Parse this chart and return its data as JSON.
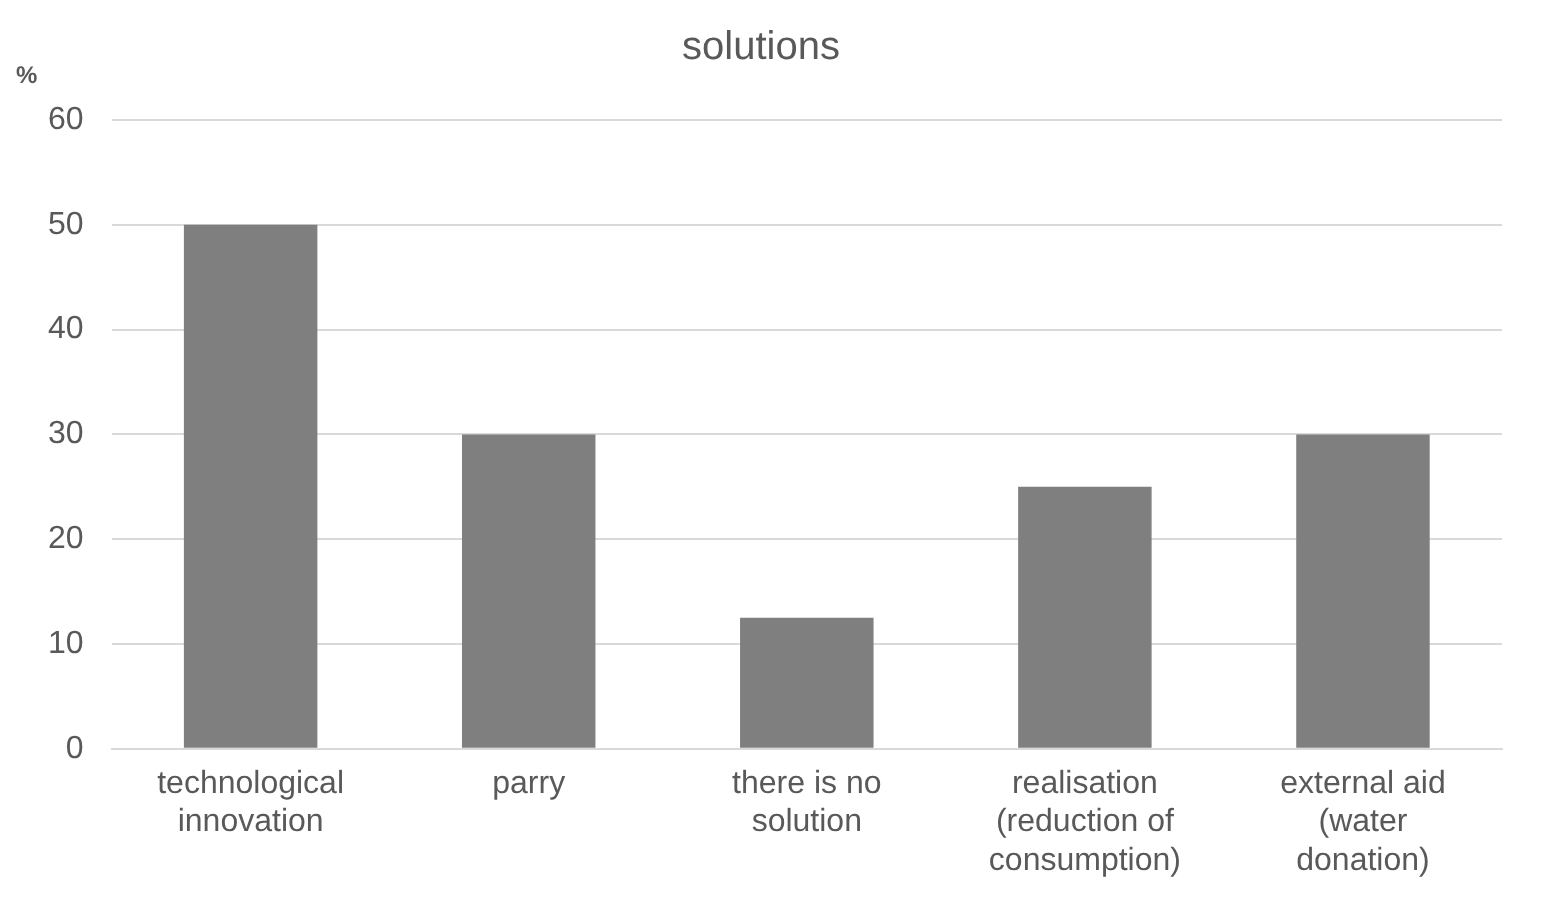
{
  "chart_data": {
    "type": "bar",
    "title": "solutions",
    "ylabel": "%",
    "categories": [
      "technological innovation",
      "parry",
      "there is no solution",
      "realisation (reduction of consumption)",
      "external aid (water donation)"
    ],
    "values": [
      50,
      30,
      12.5,
      25,
      30
    ],
    "color": "#7f7f7f",
    "ylim": [
      0,
      60
    ],
    "yticks": [
      0,
      10,
      20,
      30,
      40,
      50,
      60
    ],
    "grid": "y",
    "legend": false
  }
}
